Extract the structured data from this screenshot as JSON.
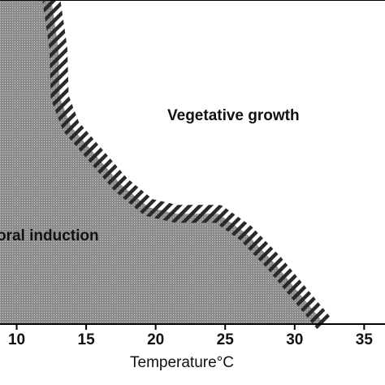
{
  "chart_data": {
    "type": "area",
    "title": "",
    "xlabel": "Temperature°C",
    "ylabel": "",
    "xlim": [
      8.8,
      36.5
    ],
    "x_ticks": [
      10,
      15,
      20,
      25,
      30,
      35
    ],
    "x_tick_labels": [
      "10",
      "15",
      "20",
      "25",
      "30",
      "35"
    ],
    "regions": [
      {
        "name": "Floral induction",
        "visible_text": "oral induction",
        "fill": "#8c8c8c",
        "pattern": "dotted"
      },
      {
        "name": "Vegetative growth",
        "visible_text": "Vegetative growth",
        "fill": "#ffffff",
        "pattern": "none"
      }
    ],
    "boundary": {
      "style": "hatched band",
      "band_color": "#2a2a2a",
      "upper_limit": [
        [
          12.5,
          0
        ],
        [
          13.0,
          0.15
        ],
        [
          13.1,
          0.3
        ],
        [
          13.9,
          0.39
        ],
        [
          15.5,
          0.47
        ],
        [
          17.5,
          0.57
        ],
        [
          19.5,
          0.64
        ],
        [
          21.5,
          0.66
        ],
        [
          24.5,
          0.66
        ],
        [
          26.5,
          0.72
        ],
        [
          28.5,
          0.81
        ],
        [
          31.0,
          0.94
        ]
      ]
    },
    "grid": false,
    "legend": "none",
    "colors": {
      "floral_area": "#8c8c8c",
      "hatch": "#2a2a2a",
      "axis": "#000000"
    }
  }
}
